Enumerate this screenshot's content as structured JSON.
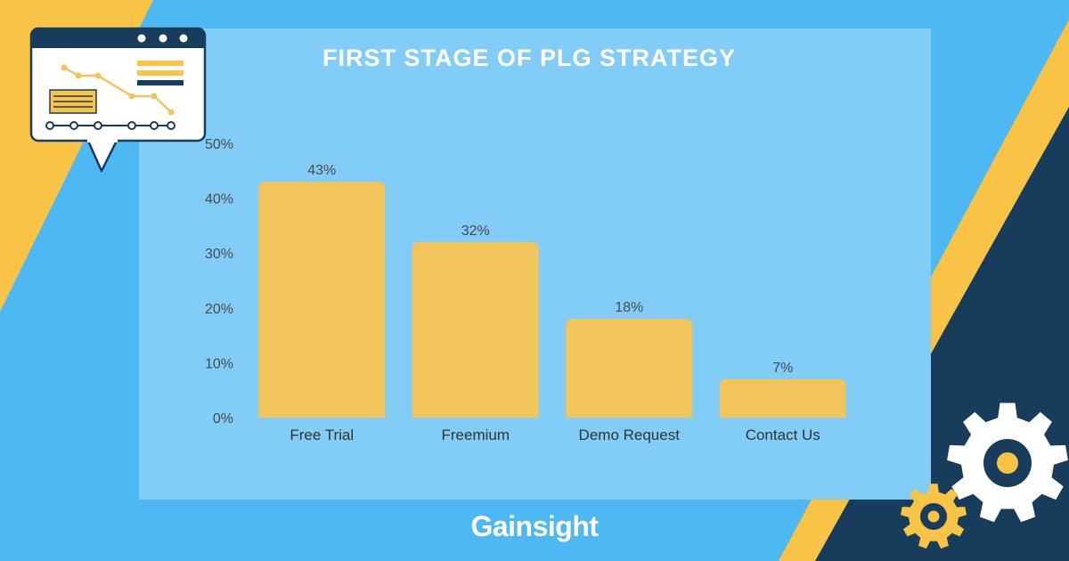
{
  "colors": {
    "background": "#4db8f2",
    "panel": "#82cdf7",
    "bar": "#f2c45c",
    "accent_yellow": "#f9c346",
    "navy": "#173c5c",
    "white": "#ffffff"
  },
  "logo": {
    "text": "Gainsight"
  },
  "icons": [
    "chart-window-icon",
    "large-gear-icon",
    "small-gear-icon"
  ],
  "chart_data": {
    "type": "bar",
    "title": "FIRST STAGE OF PLG STRATEGY",
    "xlabel": "",
    "ylabel": "",
    "categories": [
      "Free Trial",
      "Freemium",
      "Demo Request",
      "Contact Us"
    ],
    "values": [
      43,
      32,
      18,
      7
    ],
    "value_labels": [
      "43%",
      "32%",
      "18%",
      "7%"
    ],
    "ylim": [
      0,
      50
    ],
    "yticks": [
      0,
      10,
      20,
      30,
      40,
      50
    ],
    "ytick_labels": [
      "0%",
      "10%",
      "20%",
      "30%",
      "40%",
      "50%"
    ],
    "grid": false,
    "legend": "none"
  }
}
